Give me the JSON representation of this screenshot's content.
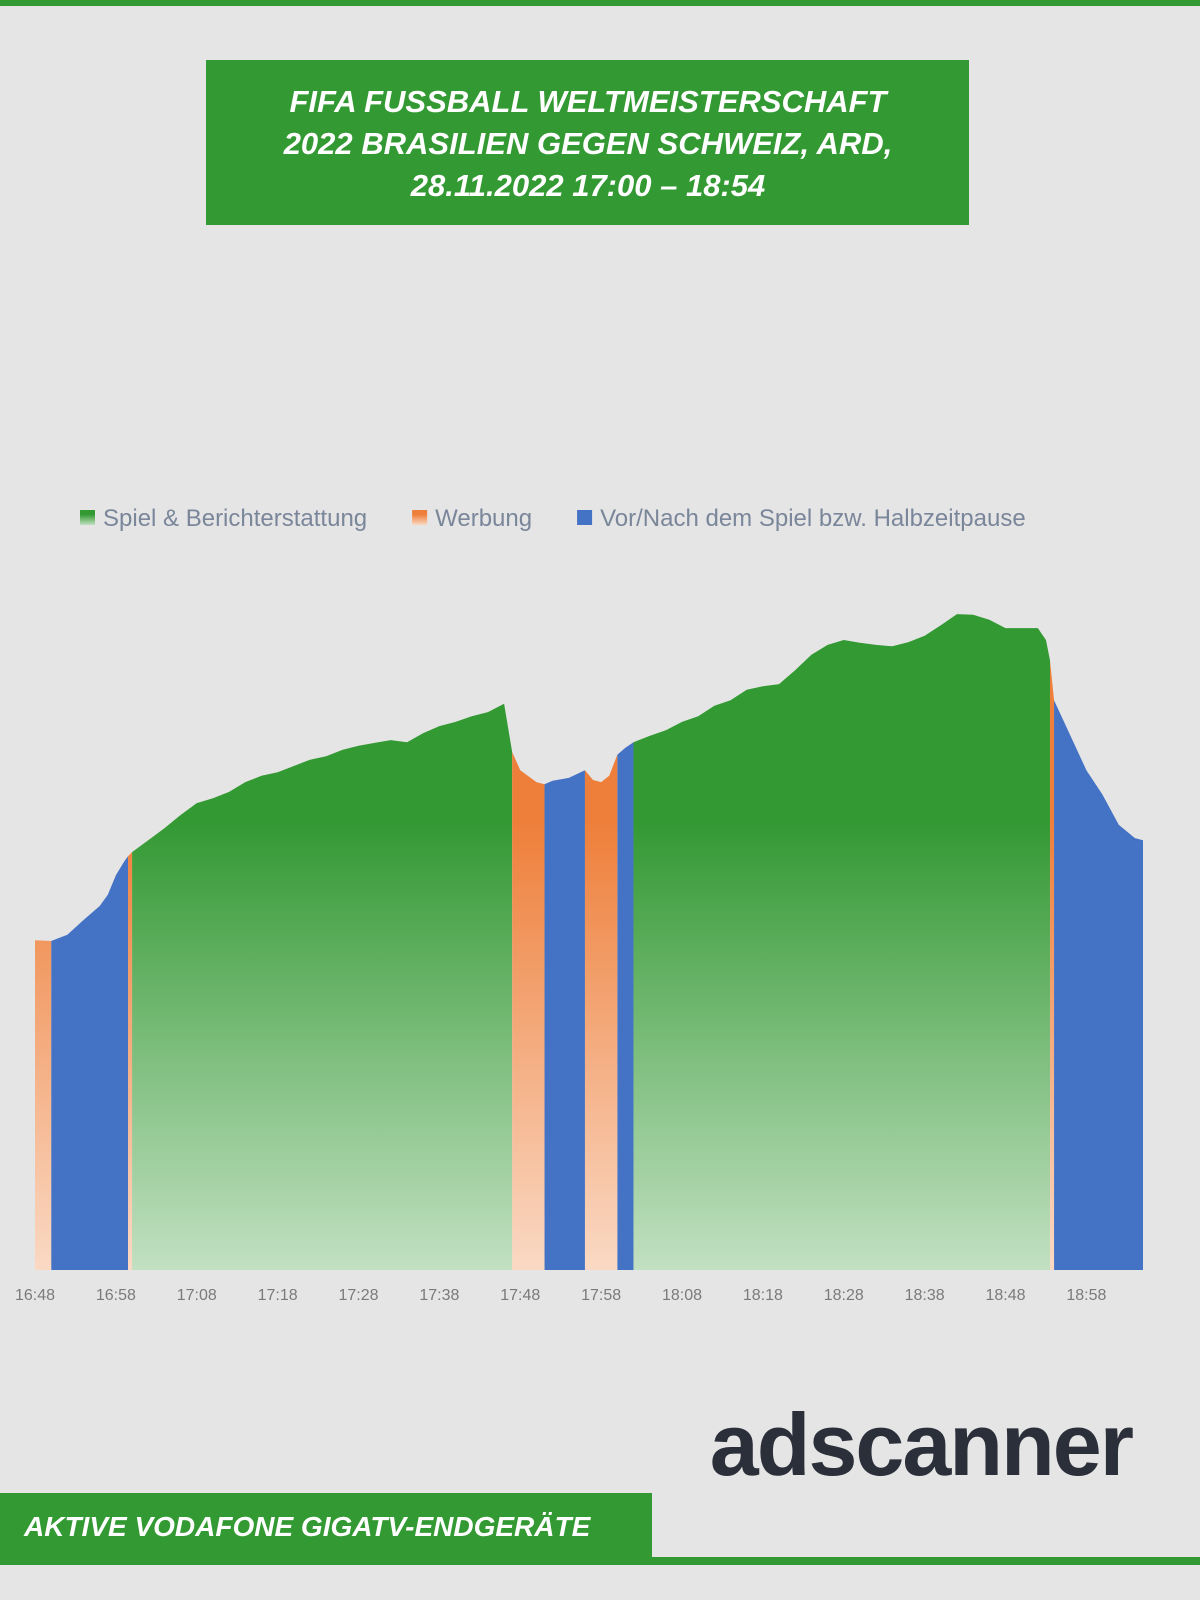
{
  "chart_data": {
    "type": "area",
    "title": [
      "FIFA FUSSBALL WELTMEISTERSCHAFT",
      "2022 BRASILIEN GEGEN SCHWEIZ, ARD,",
      "28.11.2022 17:00 – 18:54"
    ],
    "x": [
      1008,
      1010,
      1012,
      1014,
      1016,
      1017,
      1018,
      1019,
      1019.5,
      1020,
      1022,
      1024,
      1026,
      1028,
      1030,
      1032,
      1034,
      1036,
      1038,
      1040,
      1042,
      1044,
      1046,
      1048,
      1050,
      1052,
      1054,
      1056,
      1058,
      1060,
      1062,
      1064,
      1066,
      1067,
      1068,
      1070,
      1071,
      1072,
      1074,
      1076,
      1077,
      1078,
      1079,
      1080,
      1081,
      1082,
      1084,
      1086,
      1088,
      1090,
      1092,
      1094,
      1096,
      1098,
      1100,
      1102,
      1104,
      1106,
      1108,
      1110,
      1112,
      1114,
      1116,
      1118,
      1120,
      1122,
      1124,
      1126,
      1128,
      1130,
      1132,
      1133,
      1133.5,
      1134,
      1136,
      1138,
      1140,
      1142,
      1144,
      1145
    ],
    "series": [
      {
        "name": "Spiel & Berichterstattung",
        "color": "#339933",
        "gradient": true,
        "values": [
          null,
          null,
          null,
          null,
          null,
          null,
          null,
          null,
          null,
          59.7,
          61.4,
          63.1,
          65,
          66.7,
          67.4,
          68.3,
          69.7,
          70.6,
          71.1,
          72,
          72.9,
          73.4,
          74.3,
          74.9,
          75.3,
          75.7,
          75.4,
          76.7,
          77.7,
          78.3,
          79.1,
          79.7,
          80.9,
          74,
          null,
          null,
          null,
          null,
          null,
          null,
          null,
          null,
          null,
          null,
          null,
          75.4,
          76.3,
          77.1,
          78.3,
          79.1,
          80.6,
          81.4,
          82.9,
          83.4,
          83.7,
          85.7,
          87.9,
          89.3,
          90,
          89.6,
          89.3,
          89.1,
          89.7,
          90.6,
          92.1,
          93.7,
          93.6,
          92.9,
          91.7,
          91.7,
          91.7,
          90,
          87.1,
          null,
          null,
          null,
          null,
          null,
          null,
          null
        ]
      },
      {
        "name": "Werbung",
        "color": "#ee7f3a",
        "gradient": true,
        "values": [
          47.1,
          47,
          null,
          null,
          null,
          null,
          null,
          null,
          59.1,
          59.7,
          null,
          null,
          null,
          null,
          null,
          null,
          null,
          null,
          null,
          null,
          null,
          null,
          null,
          null,
          null,
          null,
          null,
          null,
          null,
          null,
          null,
          null,
          null,
          74,
          71.4,
          69.7,
          69.4,
          null,
          null,
          71.4,
          70,
          69.7,
          70.6,
          73.6,
          null,
          null,
          null,
          null,
          null,
          null,
          null,
          null,
          null,
          null,
          null,
          null,
          null,
          null,
          null,
          null,
          null,
          null,
          null,
          null,
          null,
          null,
          null,
          null,
          null,
          null,
          null,
          null,
          87.1,
          81.4,
          null,
          null,
          null,
          null,
          null,
          null
        ]
      },
      {
        "name": "Vor/Nach dem Spiel bzw. Halbzeitpause",
        "color": "#4472c4",
        "gradient": false,
        "values": [
          null,
          47,
          47.9,
          50,
          52,
          53.6,
          56.4,
          58.3,
          59.1,
          null,
          null,
          null,
          null,
          null,
          null,
          null,
          null,
          null,
          null,
          null,
          null,
          null,
          null,
          null,
          null,
          null,
          null,
          null,
          null,
          null,
          null,
          null,
          null,
          null,
          null,
          null,
          69.4,
          69.9,
          70.3,
          71.4,
          null,
          null,
          null,
          73.6,
          74.6,
          75.4,
          null,
          null,
          null,
          null,
          null,
          null,
          null,
          null,
          null,
          null,
          null,
          null,
          null,
          null,
          null,
          null,
          null,
          null,
          null,
          null,
          null,
          null,
          null,
          null,
          null,
          null,
          null,
          81.4,
          76.4,
          71.4,
          67.9,
          63.6,
          61.7,
          61.4
        ]
      }
    ],
    "xlim": [
      1008,
      1145
    ],
    "ylim": [
      0,
      100
    ],
    "xticks": [
      {
        "value": 1008,
        "label": "16:48"
      },
      {
        "value": 1018,
        "label": "16:58"
      },
      {
        "value": 1028,
        "label": "17:08"
      },
      {
        "value": 1038,
        "label": "17:18"
      },
      {
        "value": 1048,
        "label": "17:28"
      },
      {
        "value": 1058,
        "label": "17:38"
      },
      {
        "value": 1068,
        "label": "17:48"
      },
      {
        "value": 1078,
        "label": "17:58"
      },
      {
        "value": 1088,
        "label": "18:08"
      },
      {
        "value": 1098,
        "label": "18:18"
      },
      {
        "value": 1108,
        "label": "18:28"
      },
      {
        "value": 1118,
        "label": "18:38"
      },
      {
        "value": 1128,
        "label": "18:48"
      },
      {
        "value": 1138,
        "label": "18:58"
      }
    ],
    "grid": false
  },
  "logo": "adscanner",
  "footer": "AKTIVE VODAFONE GIGATV-ENDGERÄTE"
}
